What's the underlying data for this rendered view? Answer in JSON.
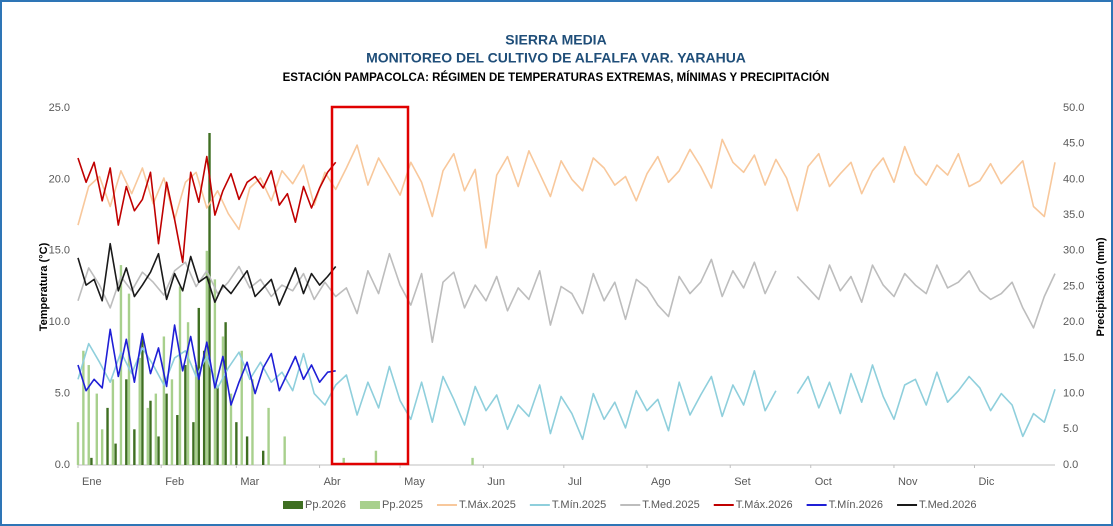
{
  "chart_data": {
    "type": "line",
    "title": "SIERRA MEDIA",
    "subtitle": "MONITOREO DEL CULTIVO DE ALFALFA VAR. YARAHUA",
    "subtitle2": "ESTACIÓN PAMPACOLCA: RÉGIMEN DE TEMPERATURAS EXTREMAS, MÍNIMAS Y PRECIPITACIÓN",
    "ylabel": "Temperatura (°C)",
    "y2label": "Precipitación (mm)",
    "xlim": [
      1,
      365
    ],
    "xticks": [
      {
        "value": 1,
        "label": "Ene"
      },
      {
        "value": 32,
        "label": "Feb"
      },
      {
        "value": 60,
        "label": "Mar"
      },
      {
        "value": 91,
        "label": "Abr"
      },
      {
        "value": 121,
        "label": "May"
      },
      {
        "value": 152,
        "label": "Jun"
      },
      {
        "value": 182,
        "label": "Jul"
      },
      {
        "value": 213,
        "label": "Ago"
      },
      {
        "value": 244,
        "label": "Set"
      },
      {
        "value": 274,
        "label": "Oct"
      },
      {
        "value": 305,
        "label": "Nov"
      },
      {
        "value": 335,
        "label": "Dic"
      }
    ],
    "ylim": [
      0,
      25
    ],
    "yticks": [
      {
        "value": 0,
        "label": "0.0"
      },
      {
        "value": 5,
        "label": "5.0"
      },
      {
        "value": 10,
        "label": "10.0"
      },
      {
        "value": 15,
        "label": "15.0"
      },
      {
        "value": 20,
        "label": "20.0"
      },
      {
        "value": 25,
        "label": "25.0"
      }
    ],
    "y2lim": [
      0,
      50
    ],
    "y2ticks": [
      {
        "value": 0,
        "label": "0.0"
      },
      {
        "value": 5,
        "label": "5.0"
      },
      {
        "value": 10,
        "label": "10.0"
      },
      {
        "value": 15,
        "label": "15.0"
      },
      {
        "value": 20,
        "label": "20.0"
      },
      {
        "value": 25,
        "label": "25.0"
      },
      {
        "value": 30,
        "label": "30.0"
      },
      {
        "value": 35,
        "label": "35.0"
      },
      {
        "value": 40,
        "label": "40.0"
      },
      {
        "value": 45,
        "label": "45.0"
      },
      {
        "value": 50,
        "label": "50.0"
      }
    ],
    "grid": false,
    "legend": "bottom",
    "x": [
      1,
      5,
      9,
      13,
      17,
      21,
      25,
      29,
      33,
      37,
      41,
      45,
      49,
      53,
      57,
      61,
      65,
      69,
      73,
      77,
      81,
      85,
      89,
      93,
      97,
      101,
      105,
      109,
      113,
      117,
      121,
      125,
      129,
      133,
      137,
      141,
      145,
      149,
      153,
      157,
      161,
      165,
      169,
      173,
      177,
      181,
      185,
      189,
      193,
      197,
      201,
      205,
      209,
      213,
      217,
      221,
      225,
      229,
      233,
      237,
      241,
      245,
      249,
      253,
      257,
      261,
      265,
      269,
      273,
      277,
      281,
      285,
      289,
      293,
      297,
      301,
      305,
      309,
      313,
      317,
      321,
      325,
      329,
      333,
      337,
      341,
      345,
      349,
      353,
      357,
      361,
      365
    ],
    "series": [
      {
        "name": "Pp.2026",
        "type": "bar",
        "axis": "y2",
        "color": "#3f6f22",
        "x": [
          6,
          12,
          15,
          19,
          22,
          25,
          28,
          31,
          34,
          38,
          41,
          44,
          46,
          48,
          50,
          53,
          56,
          60,
          64,
          70
        ],
        "values": [
          1,
          8,
          3,
          12,
          5,
          18,
          9,
          4,
          10,
          7,
          14,
          6,
          22,
          16,
          46.5,
          11,
          20,
          6,
          4,
          2
        ]
      },
      {
        "name": "Pp.2025",
        "type": "bar",
        "axis": "y2",
        "color": "#a8d08d",
        "x": [
          1,
          3,
          5,
          8,
          10,
          14,
          17,
          20,
          24,
          27,
          30,
          33,
          36,
          39,
          42,
          45,
          49,
          52,
          55,
          58,
          62,
          66,
          72,
          78,
          100,
          112,
          148
        ],
        "values": [
          6,
          16,
          14,
          10,
          5,
          12,
          28,
          24,
          15,
          8,
          10,
          18,
          12,
          25,
          20,
          14,
          30,
          26,
          18,
          10,
          16,
          12,
          8,
          4,
          1,
          2,
          1
        ]
      },
      {
        "name": "T.Máx.2025",
        "type": "line",
        "color": "#f8c89c",
        "values": [
          16.8,
          19.5,
          20.2,
          18.1,
          20.6,
          19.0,
          20.8,
          18.3,
          20.1,
          17.2,
          19.8,
          20.5,
          18.0,
          19.2,
          17.6,
          16.5,
          19.4,
          20.1,
          18.5,
          20.6,
          19.7,
          21.0,
          18.2,
          20.5,
          19.3,
          20.8,
          22.4,
          19.6,
          21.5,
          20.2,
          18.9,
          21.2,
          19.8,
          17.4,
          20.6,
          21.8,
          19.2,
          20.7,
          15.2,
          20.3,
          21.6,
          19.5,
          22.0,
          20.4,
          18.8,
          21.3,
          20.0,
          19.2,
          21.5,
          20.8,
          19.6,
          20.2,
          18.5,
          20.4,
          21.6,
          19.8,
          20.6,
          22.1,
          20.9,
          19.4,
          22.8,
          21.2,
          20.5,
          21.7,
          19.6,
          21.4,
          20.1,
          17.8,
          20.9,
          21.8,
          19.5,
          20.4,
          21.2,
          19.0,
          20.6,
          21.5,
          19.8,
          22.3,
          20.4,
          19.6,
          21.0,
          20.3,
          21.8,
          19.5,
          19.9,
          21.1,
          19.7,
          20.5,
          21.3,
          18.1,
          17.4,
          21.2
        ]
      },
      {
        "name": "T.Mín.2025",
        "type": "line",
        "color": "#8fcfdc",
        "values": [
          6.0,
          8.5,
          7.2,
          5.8,
          7.9,
          6.4,
          8.2,
          7.0,
          5.6,
          7.5,
          8.0,
          6.2,
          7.6,
          5.4,
          6.8,
          7.9,
          6.0,
          7.2,
          5.8,
          6.5,
          5.2,
          7.8,
          5.0,
          4.2,
          5.6,
          6.3,
          3.5,
          5.8,
          4.0,
          6.9,
          4.5,
          3.2,
          5.8,
          3.0,
          6.2,
          4.6,
          2.8,
          5.5,
          3.8,
          4.9,
          2.5,
          4.2,
          3.4,
          5.6,
          2.2,
          4.8,
          3.6,
          1.8,
          5.0,
          3.2,
          4.4,
          2.6,
          5.2,
          3.8,
          4.6,
          2.4,
          5.8,
          3.5,
          4.9,
          6.2,
          3.4,
          5.6,
          4.2,
          6.6,
          3.8,
          5.2,
          null,
          5.0,
          6.2,
          4.0,
          5.8,
          3.6,
          6.4,
          4.4,
          7.0,
          4.8,
          3.2,
          5.6,
          6.0,
          4.2,
          6.5,
          4.4,
          5.2,
          6.2,
          5.4,
          3.8,
          5.0,
          4.2,
          2.0,
          3.6,
          3.0,
          5.3
        ]
      },
      {
        "name": "T.Med.2025",
        "type": "line",
        "color": "#bdbdbd",
        "values": [
          11.5,
          13.8,
          12.6,
          11.0,
          13.2,
          12.2,
          13.5,
          12.8,
          11.9,
          13.6,
          14.2,
          12.5,
          13.6,
          12.0,
          12.8,
          13.9,
          12.4,
          13.0,
          11.8,
          12.6,
          12.2,
          13.4,
          11.6,
          12.8,
          11.8,
          12.4,
          10.6,
          13.6,
          12.0,
          14.8,
          12.6,
          11.2,
          13.4,
          8.6,
          12.8,
          13.5,
          11.0,
          12.6,
          11.5,
          13.2,
          10.8,
          12.4,
          11.6,
          13.6,
          9.8,
          12.5,
          12.0,
          10.6,
          13.4,
          11.5,
          12.8,
          10.2,
          13.0,
          12.4,
          11.2,
          10.4,
          13.2,
          12.0,
          12.8,
          14.4,
          11.8,
          13.6,
          12.4,
          14.2,
          12.0,
          13.6,
          null,
          13.2,
          12.4,
          11.6,
          14.0,
          12.2,
          13.2,
          11.4,
          14.0,
          12.6,
          11.8,
          13.4,
          12.6,
          12.0,
          14.0,
          12.4,
          12.8,
          13.6,
          12.2,
          11.6,
          12.0,
          12.8,
          11.0,
          9.6,
          11.8,
          13.4
        ]
      },
      {
        "name": "T.Máx.2026",
        "type": "line",
        "color": "#c00000",
        "x": [
          1,
          4,
          7,
          10,
          13,
          16,
          19,
          22,
          25,
          28,
          31,
          34,
          37,
          40,
          43,
          46,
          49,
          52,
          55,
          58,
          61,
          64,
          67,
          70,
          73,
          76,
          79,
          82,
          85,
          88,
          91,
          94,
          97
        ],
        "values": [
          21.5,
          19.8,
          21.2,
          18.5,
          20.8,
          16.8,
          19.5,
          17.8,
          18.6,
          20.5,
          15.5,
          19.8,
          17.2,
          14.2,
          20.5,
          18.4,
          21.6,
          17.5,
          19.2,
          20.4,
          18.6,
          19.8,
          20.2,
          19.4,
          20.6,
          18.2,
          19.0,
          17.0,
          19.5,
          18.0,
          19.4,
          20.5,
          21.2
        ]
      },
      {
        "name": "T.Mín.2026",
        "type": "line",
        "color": "#1f1fd6",
        "x": [
          1,
          4,
          7,
          10,
          13,
          16,
          19,
          22,
          25,
          28,
          31,
          34,
          37,
          40,
          43,
          46,
          49,
          52,
          55,
          58,
          61,
          64,
          67,
          70,
          73,
          76,
          79,
          82,
          85,
          88,
          91,
          94,
          97
        ],
        "values": [
          7.0,
          5.2,
          6.0,
          5.4,
          9.5,
          6.2,
          8.8,
          5.8,
          9.2,
          6.4,
          8.2,
          5.5,
          9.8,
          6.6,
          9.0,
          6.0,
          8.6,
          5.4,
          7.6,
          4.2,
          5.8,
          7.2,
          5.0,
          6.8,
          7.8,
          5.2,
          6.4,
          7.6,
          6.0,
          7.0,
          5.8,
          6.5,
          6.6
        ]
      },
      {
        "name": "T.Med.2026",
        "type": "line",
        "color": "#1a1a1a",
        "x": [
          1,
          4,
          7,
          10,
          13,
          16,
          19,
          22,
          25,
          28,
          31,
          34,
          37,
          40,
          43,
          46,
          49,
          52,
          55,
          58,
          61,
          64,
          67,
          70,
          73,
          76,
          79,
          82,
          85,
          88,
          91,
          94,
          97
        ],
        "values": [
          14.5,
          12.6,
          13.0,
          11.5,
          15.5,
          12.2,
          13.8,
          11.8,
          12.6,
          13.5,
          14.8,
          11.6,
          13.4,
          12.2,
          14.6,
          12.8,
          13.2,
          11.4,
          12.6,
          12.0,
          12.8,
          13.6,
          11.8,
          12.4,
          13.0,
          11.2,
          12.5,
          13.8,
          12.0,
          13.4,
          12.6,
          13.2,
          13.9
        ]
      }
    ]
  }
}
